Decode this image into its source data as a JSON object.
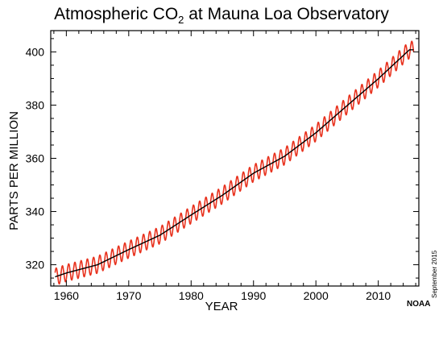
{
  "chart_data": {
    "type": "line",
    "title": "Atmospheric CO",
    "title_subscript": "2",
    "title_suffix": " at Mauna Loa Observatory",
    "xlabel": "YEAR",
    "ylabel": "PARTS PER MILLION",
    "xlim": [
      1957.5,
      2016.5
    ],
    "ylim": [
      312,
      408
    ],
    "x_ticks": [
      1960,
      1970,
      1980,
      1990,
      2000,
      2010
    ],
    "y_ticks": [
      320,
      340,
      360,
      380,
      400
    ],
    "grid": false,
    "series": [
      {
        "role": "monthly mean (seasonal cycle)",
        "color": "#e8321e",
        "seasonal_amplitude_ppm": 3.2,
        "x": [
          1958,
          1960,
          1965,
          1970,
          1975,
          1980,
          1985,
          1990,
          1995,
          2000,
          2005,
          2010,
          2015
        ],
        "y": [
          315.3,
          316.9,
          320.0,
          325.7,
          331.1,
          338.7,
          346.1,
          354.4,
          360.8,
          369.6,
          379.8,
          389.9,
          400.8
        ]
      },
      {
        "role": "seasonally corrected trend",
        "color": "#000000",
        "x": [
          1958,
          1960,
          1965,
          1970,
          1975,
          1980,
          1985,
          1990,
          1995,
          2000,
          2005,
          2010,
          2015
        ],
        "y": [
          315.3,
          316.9,
          320.0,
          325.7,
          331.1,
          338.7,
          346.1,
          354.4,
          360.8,
          369.6,
          379.8,
          389.9,
          400.8
        ]
      }
    ]
  },
  "credit": {
    "date": "September 2015",
    "org": "NOAA"
  }
}
